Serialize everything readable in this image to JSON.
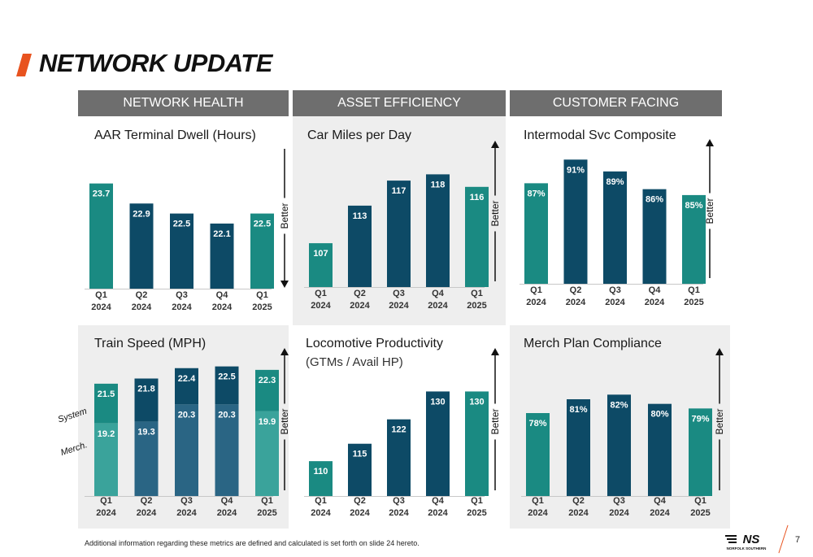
{
  "slide": {
    "title": "NETWORK UPDATE",
    "sections": [
      "NETWORK HEALTH",
      "ASSET EFFICIENCY",
      "CUSTOMER FACING"
    ],
    "footnote": "Additional information regarding these metrics are defined and calculated is set forth on slide 24 hereto.",
    "page_number": "7",
    "logo_text": "NS",
    "logo_subtext": "NORFOLK SOUTHERN",
    "colors": {
      "accent": "#e8531f",
      "teal": "#1a8a82",
      "navy": "#0d4a66",
      "teal_light": "#3aa39b",
      "navy_light": "#2a6584",
      "header_gray": "#6e6e6e"
    }
  },
  "chart_data": [
    {
      "type": "bar",
      "title": "AAR Terminal Dwell (Hours)",
      "categories": [
        "Q1 2024",
        "Q2 2024",
        "Q3 2024",
        "Q4 2024",
        "Q1 2025"
      ],
      "values": [
        23.7,
        22.9,
        22.5,
        22.1,
        22.5
      ],
      "labels": [
        "23.7",
        "22.9",
        "22.5",
        "22.1",
        "22.5"
      ],
      "colors": [
        "teal",
        "navy",
        "navy",
        "navy",
        "teal"
      ],
      "arrow": "down",
      "arrow_label": "Better",
      "ylim": [
        19.5,
        24.5
      ]
    },
    {
      "type": "bar",
      "title": "Car Miles per Day",
      "categories": [
        "Q1 2024",
        "Q2 2024",
        "Q3 2024",
        "Q4 2024",
        "Q1 2025"
      ],
      "values": [
        107,
        113,
        117,
        118,
        116
      ],
      "labels": [
        "107",
        "113",
        "117",
        "118",
        "116"
      ],
      "colors": [
        "teal",
        "navy",
        "navy",
        "navy",
        "teal"
      ],
      "arrow": "up",
      "arrow_label": "Better",
      "ylim": [
        100,
        120
      ]
    },
    {
      "type": "bar",
      "title": "Intermodal Svc Composite",
      "categories": [
        "Q1 2024",
        "Q2 2024",
        "Q3 2024",
        "Q4 2024",
        "Q1 2025"
      ],
      "values": [
        87,
        91,
        89,
        86,
        85
      ],
      "labels": [
        "87%",
        "91%",
        "89%",
        "86%",
        "85%"
      ],
      "colors": [
        "teal",
        "navy",
        "navy",
        "navy",
        "teal"
      ],
      "arrow": "up",
      "arrow_label": "Better",
      "ylim": [
        70,
        92
      ]
    },
    {
      "type": "bar",
      "title": "Train Speed (MPH)",
      "categories": [
        "Q1 2024",
        "Q2 2024",
        "Q3 2024",
        "Q4 2024",
        "Q1 2025"
      ],
      "series": [
        {
          "name": "System",
          "values": [
            21.5,
            21.8,
            22.4,
            22.5,
            22.3
          ],
          "labels": [
            "21.5",
            "21.8",
            "22.4",
            "22.5",
            "22.3"
          ]
        },
        {
          "name": "Merch.",
          "values": [
            19.2,
            19.3,
            20.3,
            20.3,
            19.9
          ],
          "labels": [
            "19.2",
            "19.3",
            "20.3",
            "20.3",
            "19.9"
          ]
        }
      ],
      "colors": [
        "teal",
        "navy",
        "navy",
        "navy",
        "teal"
      ],
      "arrow": "up",
      "arrow_label": "Better",
      "ylim": [
        15,
        23
      ]
    },
    {
      "type": "bar",
      "title": "Locomotive Productivity",
      "subtitle": "(GTMs / Avail HP)",
      "categories": [
        "Q1 2024",
        "Q2 2024",
        "Q3 2024",
        "Q4 2024",
        "Q1 2025"
      ],
      "values": [
        110,
        115,
        122,
        130,
        130
      ],
      "labels": [
        "110",
        "115",
        "122",
        "130",
        "130"
      ],
      "colors": [
        "teal",
        "navy",
        "navy",
        "navy",
        "teal"
      ],
      "arrow": "up",
      "arrow_label": "Better",
      "ylim": [
        100,
        135
      ]
    },
    {
      "type": "bar",
      "title": "Merch Plan Compliance",
      "categories": [
        "Q1 2024",
        "Q2 2024",
        "Q3 2024",
        "Q4 2024",
        "Q1 2025"
      ],
      "values": [
        78,
        81,
        82,
        80,
        79
      ],
      "labels": [
        "78%",
        "81%",
        "82%",
        "80%",
        "79%"
      ],
      "colors": [
        "teal",
        "navy",
        "navy",
        "navy",
        "teal"
      ],
      "arrow": "up",
      "arrow_label": "Better",
      "ylim": [
        60,
        84
      ]
    }
  ]
}
